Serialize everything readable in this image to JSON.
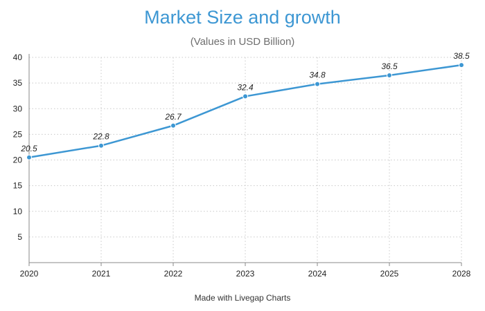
{
  "chart_data": {
    "type": "line",
    "title": "Market Size and growth",
    "subtitle": "(Values in USD Billion)",
    "categories": [
      "2020",
      "2021",
      "2022",
      "2023",
      "2024",
      "2025",
      "2028"
    ],
    "series": [
      {
        "name": "Market Size",
        "values": [
          20.5,
          22.8,
          26.7,
          32.4,
          34.8,
          36.5,
          38.5
        ],
        "data_labels": [
          "20.5",
          "22.8",
          "26.7",
          "32.4",
          "34.8",
          "36.5",
          "38.5"
        ]
      }
    ],
    "y_ticks": [
      5,
      10,
      15,
      20,
      25,
      30,
      35,
      40
    ],
    "y_tick_labels": [
      "5",
      "10",
      "15",
      "20",
      "25",
      "30",
      "35",
      "40"
    ],
    "ylim": [
      0,
      40
    ],
    "xlabel": "",
    "ylabel": "",
    "grid": true,
    "legend": "none"
  },
  "footer": {
    "credit": "Made with Livegap Charts"
  },
  "colors": {
    "title": "#3d97d3",
    "line": "#3d97d3",
    "grid": "#c8c8c8",
    "axis": "#888888"
  }
}
